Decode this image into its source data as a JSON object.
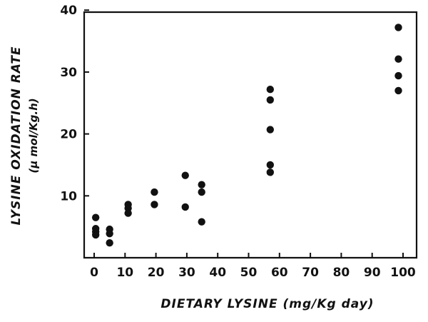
{
  "chart_data": {
    "type": "scatter",
    "title": "",
    "xlabel": "DIETARY LYSINE (mg/Kg day)",
    "ylabel": "LYSINE OXIDATION RATE",
    "ylabel_units": "(μ mol/Kg.h)",
    "xlim": [
      0,
      105
    ],
    "ylim": [
      0,
      40
    ],
    "xticks": [
      "0",
      "10",
      "20",
      "30",
      "40",
      "50",
      "60",
      "70",
      "80",
      "90",
      "100"
    ],
    "yticks": [
      "10",
      "20",
      "30",
      "40"
    ],
    "grid": false,
    "points": [
      {
        "x": 0.5,
        "y": 6.5
      },
      {
        "x": 0.5,
        "y": 4.7
      },
      {
        "x": 0.5,
        "y": 4.2
      },
      {
        "x": 0.5,
        "y": 3.7
      },
      {
        "x": 5,
        "y": 4.6
      },
      {
        "x": 5,
        "y": 3.9
      },
      {
        "x": 5,
        "y": 2.4
      },
      {
        "x": 11,
        "y": 8.6
      },
      {
        "x": 11,
        "y": 8.0
      },
      {
        "x": 11,
        "y": 7.2
      },
      {
        "x": 19.5,
        "y": 10.6
      },
      {
        "x": 19.5,
        "y": 8.6
      },
      {
        "x": 29.5,
        "y": 13.3
      },
      {
        "x": 29.5,
        "y": 8.2
      },
      {
        "x": 34.8,
        "y": 11.8
      },
      {
        "x": 34.8,
        "y": 10.6
      },
      {
        "x": 34.8,
        "y": 5.8
      },
      {
        "x": 57,
        "y": 27.2
      },
      {
        "x": 57,
        "y": 25.5
      },
      {
        "x": 57,
        "y": 20.7
      },
      {
        "x": 57,
        "y": 15.0
      },
      {
        "x": 57,
        "y": 13.8
      },
      {
        "x": 98.5,
        "y": 37.2
      },
      {
        "x": 98.5,
        "y": 32.1
      },
      {
        "x": 98.5,
        "y": 29.4
      },
      {
        "x": 98.5,
        "y": 27.0
      }
    ]
  }
}
